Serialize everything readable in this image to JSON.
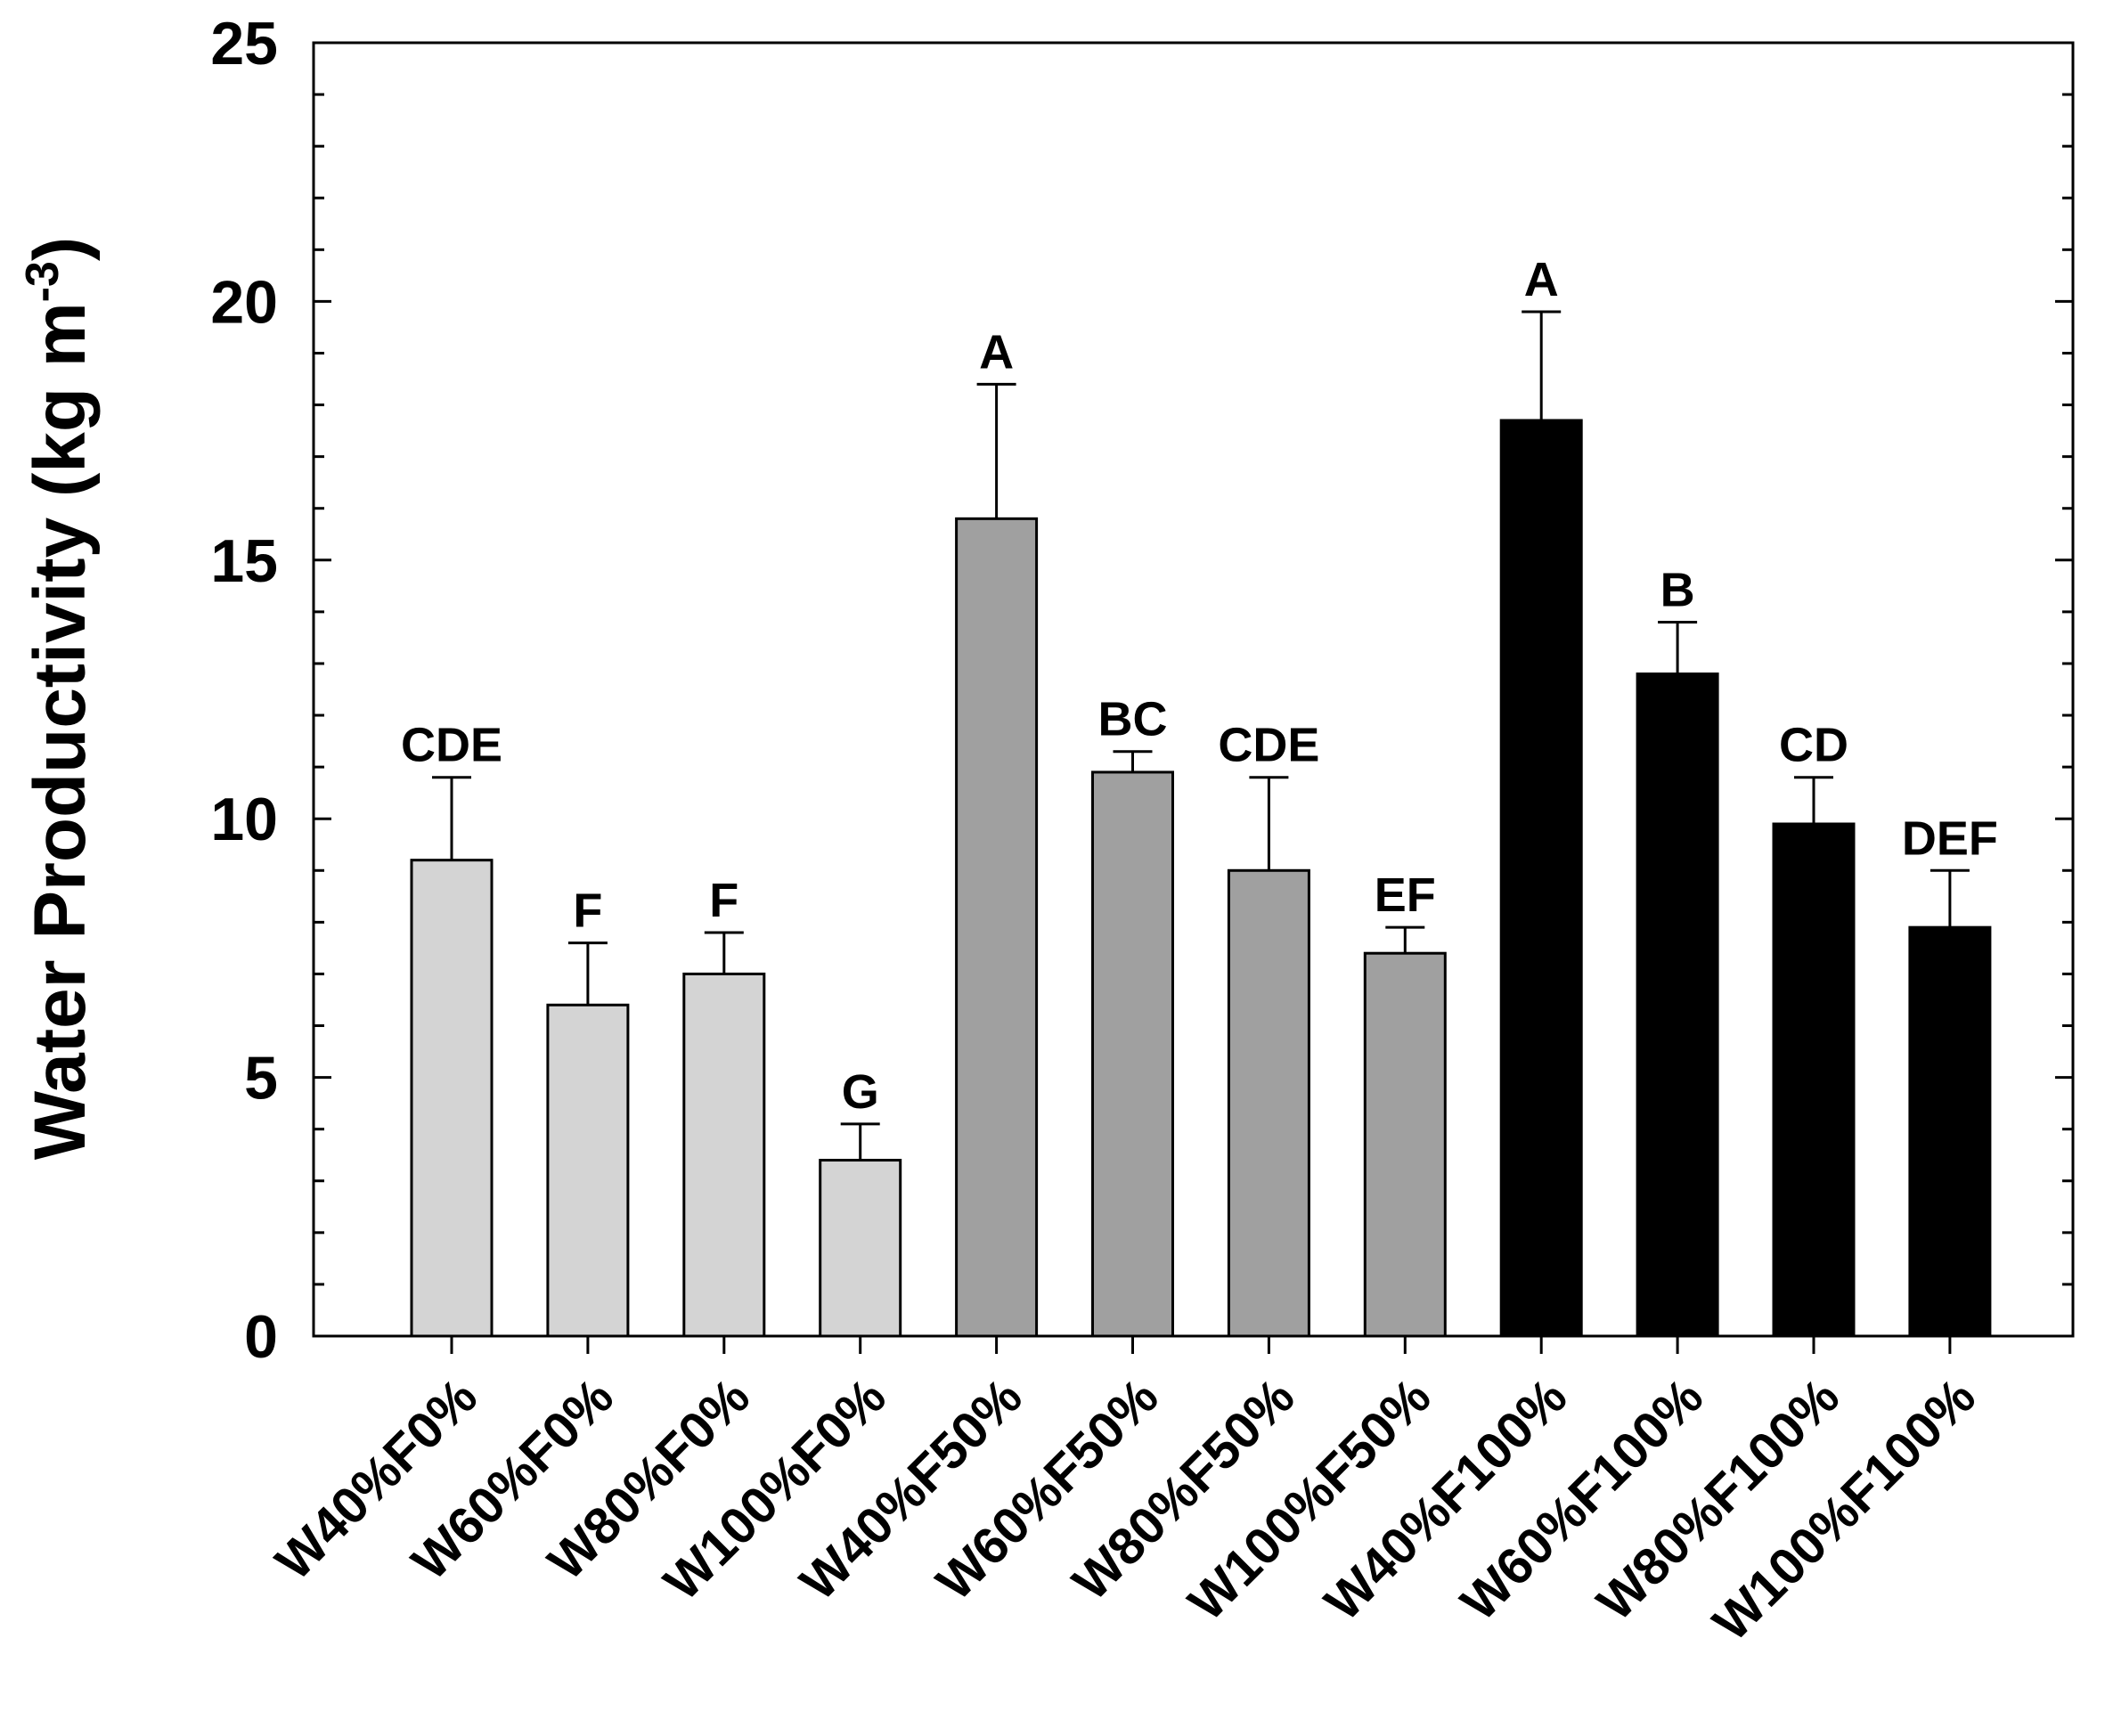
{
  "chart_data": {
    "type": "bar",
    "title": "",
    "xlabel": "",
    "ylabel": "Water Productivity (kg m-3)",
    "ylabel_parts": {
      "main": "Water Productivity (kg m",
      "sup": "-3",
      "close": ")"
    },
    "ylim": [
      0,
      25
    ],
    "yticks": [
      0,
      5,
      10,
      15,
      20,
      25
    ],
    "ytick_labels": [
      "0",
      "5",
      "10",
      "15",
      "20",
      "25"
    ],
    "minor_tick_step": 1,
    "grid": false,
    "legend": "none",
    "categories": [
      "W40%F0%",
      "W60%F0%",
      "W80%F0%",
      "W100%F0%",
      "W40%F50%",
      "W60%F50%",
      "W80%F50%",
      "W100%F50%",
      "W40%F100%",
      "W60%F100%",
      "W80%F100%",
      "W100%F100%"
    ],
    "values": [
      9.2,
      6.4,
      7.0,
      3.4,
      15.8,
      10.9,
      9.0,
      7.4,
      17.7,
      12.8,
      9.9,
      7.9
    ],
    "errors": [
      1.6,
      1.2,
      0.8,
      0.7,
      2.6,
      0.4,
      1.8,
      0.5,
      2.1,
      1.0,
      0.9,
      1.1
    ],
    "significance_letters": [
      "CDE",
      "F",
      "F",
      "G",
      "A",
      "BC",
      "CDE",
      "EF",
      "A",
      "B",
      "CD",
      "DEF"
    ],
    "groups": [
      {
        "name": "F0%",
        "color": "#d4d4d4",
        "indices": [
          0,
          1,
          2,
          3
        ]
      },
      {
        "name": "F50%",
        "color": "#a0a0a0",
        "indices": [
          4,
          5,
          6,
          7
        ]
      },
      {
        "name": "F100%",
        "color": "#000000",
        "indices": [
          8,
          9,
          10,
          11
        ]
      }
    ]
  }
}
